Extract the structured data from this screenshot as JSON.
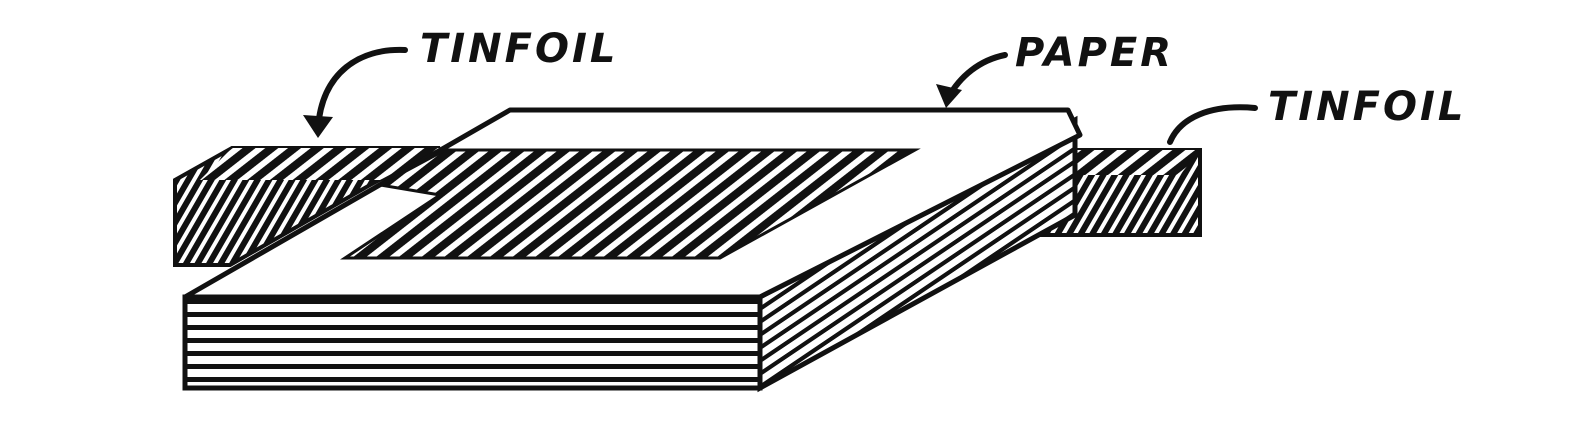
{
  "labels": {
    "tinfoil_left": "TINFOIL",
    "paper": "PAPER",
    "tinfoil_right": "TINFOIL"
  },
  "colors": {
    "ink": "#111111",
    "paper": "#ffffff"
  }
}
